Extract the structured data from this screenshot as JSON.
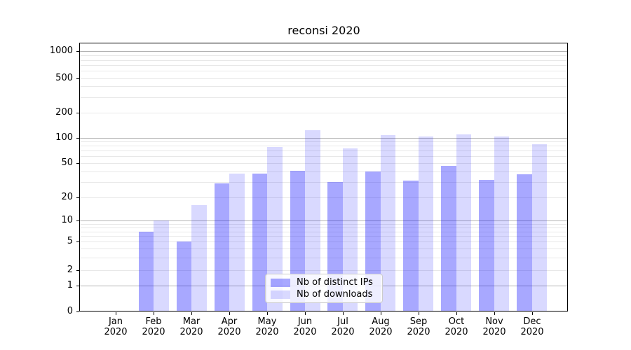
{
  "title": "reconsi 2020",
  "chart_data": {
    "type": "bar",
    "title": "reconsi 2020",
    "categories": [
      "Jan 2020",
      "Feb 2020",
      "Mar 2020",
      "Apr 2020",
      "May 2020",
      "Jun 2020",
      "Jul 2020",
      "Aug 2020",
      "Sep 2020",
      "Oct 2020",
      "Nov 2020",
      "Dec 2020"
    ],
    "series": [
      {
        "name": "Nb of distinct IPs",
        "color": "#0000ff",
        "alpha": 0.34,
        "values": [
          0,
          7,
          5,
          29,
          38,
          41,
          30,
          40,
          31,
          46,
          32,
          37
        ]
      },
      {
        "name": "Nb of downloads",
        "color": "#0000ff",
        "alpha": 0.15,
        "values": [
          0,
          10,
          16,
          38,
          77,
          122,
          75,
          107,
          103,
          109,
          103,
          84
        ]
      }
    ],
    "y_axis": {
      "scale": "symlog",
      "tick_labels": [
        "0",
        "1",
        "2",
        "5",
        "10",
        "20",
        "50",
        "100",
        "200",
        "500",
        "1000"
      ],
      "tick_values": [
        0,
        1,
        2,
        5,
        10,
        20,
        50,
        100,
        200,
        500,
        1000
      ],
      "range_top": 1000
    },
    "x_axis": {
      "label_line_2": "2020"
    },
    "legend": {
      "position": "lower center"
    },
    "grid": "both"
  },
  "colors": {
    "grid_major": "#b2b2b2",
    "grid_minor": "#e8e8e8",
    "axis": "#000000",
    "legend_border": "#cccccc",
    "legend_background": "#ffffff"
  }
}
